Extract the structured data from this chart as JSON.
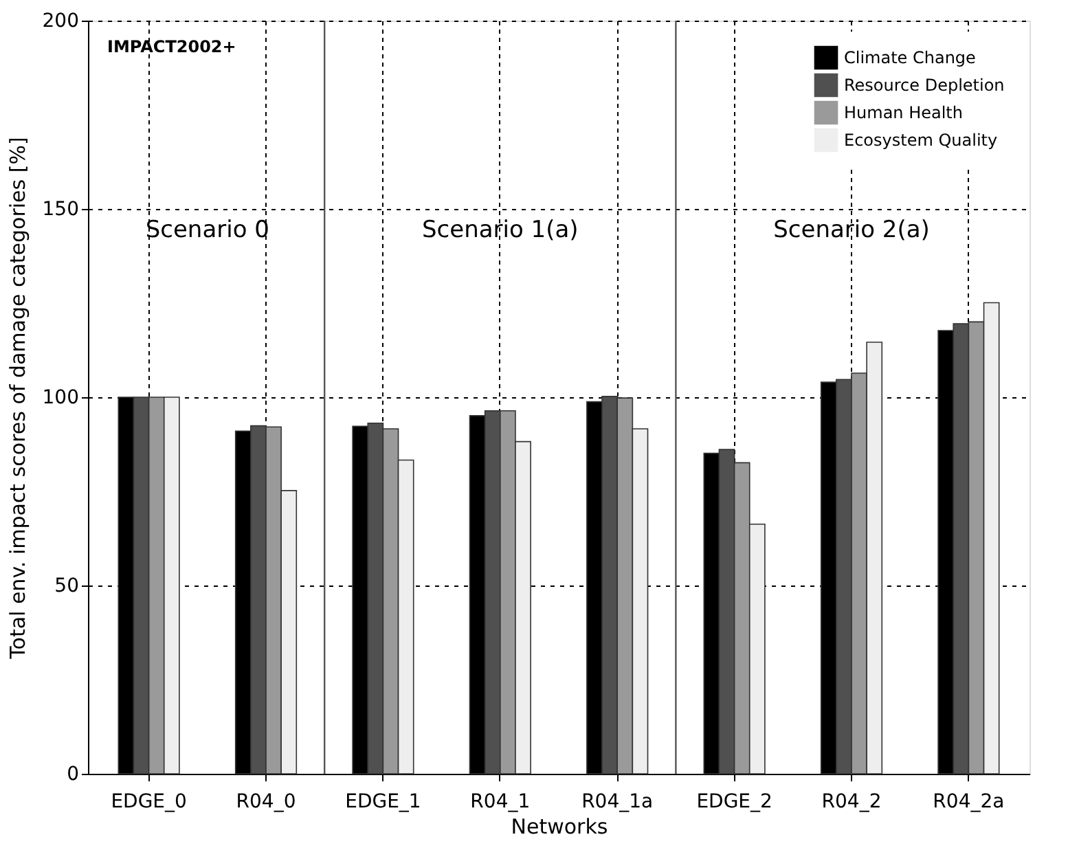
{
  "chart_data": {
    "type": "bar",
    "xlabel": "Networks",
    "ylabel": "Total env. impact scores of damage categories [%]",
    "categories": [
      "EDGE_0",
      "R04_0",
      "EDGE_1",
      "R04_1",
      "R04_1a",
      "EDGE_2",
      "R04_2",
      "R04_2a"
    ],
    "series": [
      {
        "name": "Climate Change",
        "color": "#000000",
        "values": [
          100,
          91,
          92.3,
          95.1,
          98.8,
          85.1,
          104,
          117.7
        ]
      },
      {
        "name": "Resource Depletion",
        "color": "#505050",
        "values": [
          100,
          92.4,
          93.1,
          96.4,
          100.2,
          86.1,
          104.7,
          119.5
        ]
      },
      {
        "name": "Human Health",
        "color": "#9a9a9a",
        "values": [
          100,
          92.1,
          91.6,
          96.4,
          99.8,
          82.6,
          106.4,
          120
        ]
      },
      {
        "name": "Ecosystem Quality",
        "color": "#eeeeee",
        "values": [
          100,
          75.2,
          83.3,
          88.2,
          91.6,
          66.3,
          114.6,
          125.1
        ]
      }
    ],
    "ylim": [
      0,
      200
    ],
    "yticks": [
      0,
      50,
      100,
      150,
      200
    ],
    "grid": true,
    "legend": "top right",
    "annotations": [
      "IMPACT2002+",
      "Scenario 0",
      "Scenario 1(a)",
      "Scenario 2(a)"
    ]
  }
}
